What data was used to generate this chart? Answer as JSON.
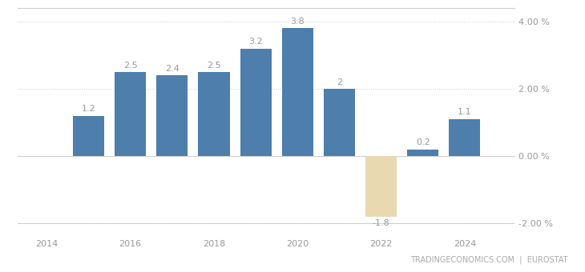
{
  "years": [
    2015,
    2016,
    2017,
    2018,
    2019,
    2020,
    2021,
    2022,
    2023,
    2024
  ],
  "values": [
    1.2,
    2.5,
    2.4,
    2.5,
    3.2,
    3.8,
    2.0,
    -1.8,
    0.2,
    1.1
  ],
  "bar_colors": [
    "#4d7eac",
    "#4d7eac",
    "#4d7eac",
    "#4d7eac",
    "#4d7eac",
    "#4d7eac",
    "#4d7eac",
    "#e8d9b0",
    "#4d7eac",
    "#4d7eac"
  ],
  "ylim": [
    -2.4,
    4.4
  ],
  "yticks": [
    -2.0,
    0.0,
    2.0,
    4.0
  ],
  "ytick_labels": [
    "-2.00 %",
    "0.00 %",
    "2.00 %",
    "4.00 %"
  ],
  "xtick_labels": [
    "2014",
    "2016",
    "2018",
    "2020",
    "2022",
    "2024"
  ],
  "xtick_positions": [
    2014,
    2016,
    2018,
    2020,
    2022,
    2024
  ],
  "grid_color": "#cccccc",
  "bar_width": 0.75,
  "label_fontsize": 8,
  "label_color": "#999999",
  "watermark_text": "TRADINGECONOMICS.COM  |  EUROSTAT",
  "watermark_color": "#aaaaaa",
  "watermark_fontsize": 7,
  "background_color": "#ffffff",
  "border_color": "#cccccc",
  "xlim_left": 2013.3,
  "xlim_right": 2025.2
}
